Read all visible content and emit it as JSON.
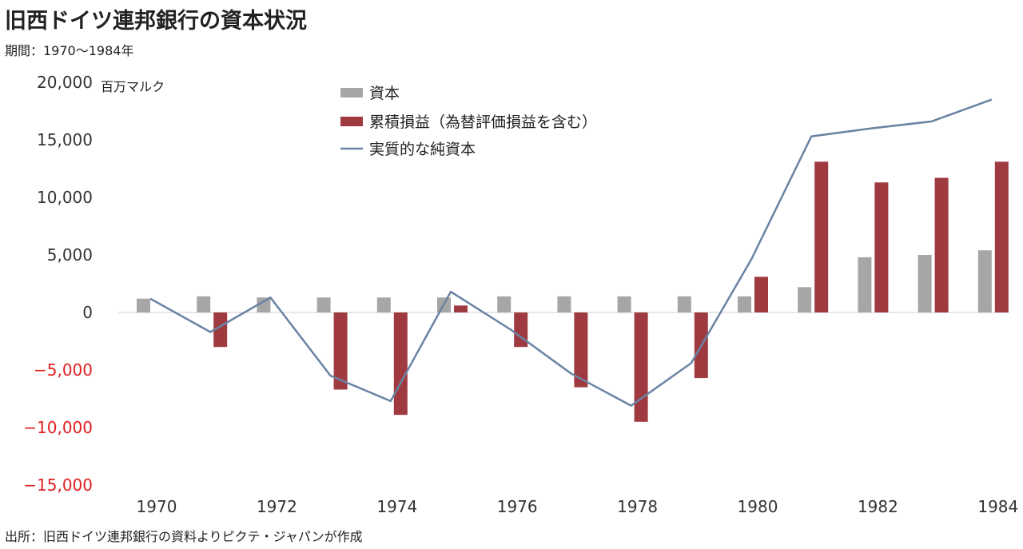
{
  "title": "旧西ドイツ連邦銀行の資本状況",
  "subtitle": "期間：1970〜1984年",
  "source": "出所：旧西ドイツ連邦銀行の資料よりピクテ・ジャパンが作成",
  "colors": {
    "capital": "#a6a6a6",
    "losses": "#9e3a40",
    "net_capital": "#6a83a3",
    "negative_tick": "#e02020",
    "positive_tick": "#333333"
  },
  "chart_data": {
    "type": "bar",
    "unit_label": "百万マルク",
    "x": [
      1970,
      1971,
      1972,
      1973,
      1974,
      1975,
      1976,
      1977,
      1978,
      1979,
      1980,
      1981,
      1982,
      1983,
      1984
    ],
    "x_tick_labels": [
      "1970",
      "1972",
      "1974",
      "1976",
      "1978",
      "1980",
      "1982",
      "1984"
    ],
    "y_ticks": [
      20000,
      15000,
      10000,
      5000,
      0,
      -5000,
      -10000,
      -15000
    ],
    "y_tick_labels": [
      "20,000",
      "15,000",
      "10,000",
      "5,000",
      "0",
      "−5,000",
      "−10,000",
      "−15,000"
    ],
    "ylim": [
      -15000,
      20000
    ],
    "legend_position": "top-center",
    "grid": false,
    "series": [
      {
        "name": "資本",
        "kind": "bar",
        "values": [
          1200,
          1400,
          1300,
          1300,
          1300,
          1300,
          1400,
          1400,
          1400,
          1400,
          1400,
          2200,
          4800,
          5000,
          5400
        ]
      },
      {
        "name": "累積損益（為替評価損益を含む）",
        "kind": "bar",
        "values": [
          0,
          -3000,
          0,
          -6700,
          -8900,
          600,
          -3000,
          -6500,
          -9500,
          -5700,
          3100,
          13100,
          11300,
          11700,
          13100
        ]
      },
      {
        "name": "実質的な純資本",
        "kind": "line",
        "values": [
          1200,
          -1700,
          1300,
          -5500,
          -7700,
          1800,
          -1500,
          -5300,
          -8100,
          -4400,
          4600,
          15300,
          16000,
          16600,
          18500
        ]
      }
    ]
  }
}
